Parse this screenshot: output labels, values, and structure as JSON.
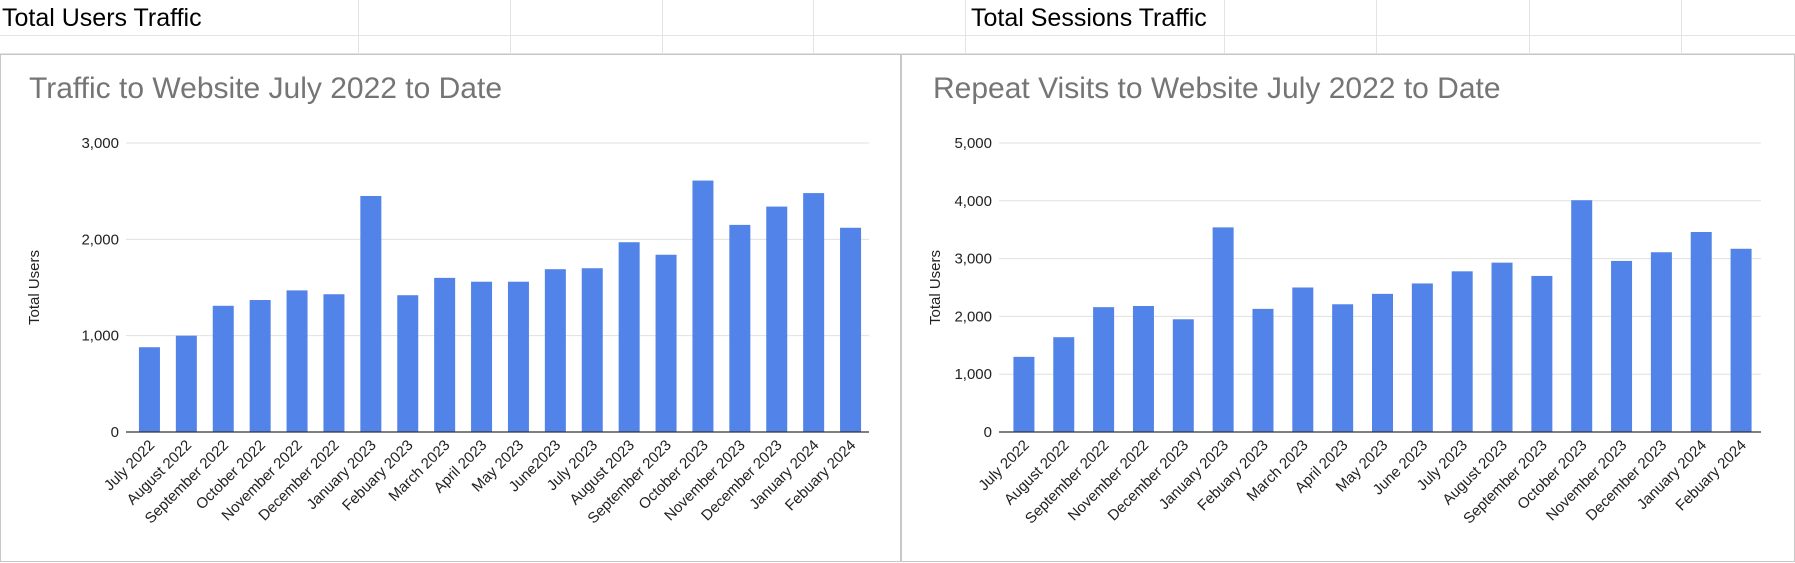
{
  "sheet": {
    "cell_left": "Total Users Traffic",
    "cell_right": "Total Sessions Traffic"
  },
  "chart_data": [
    {
      "type": "bar",
      "title": "Traffic to Website July 2022 to Date",
      "xlabel": "",
      "ylabel": "Total Users",
      "ylim": [
        0,
        3000
      ],
      "yticks": [
        0,
        1000,
        2000,
        3000
      ],
      "ytick_labels": [
        "0",
        "1,000",
        "2,000",
        "3,000"
      ],
      "grid": true,
      "color": "#5283e8",
      "categories": [
        "July 2022",
        "August 2022",
        "September 2022",
        "October 2022",
        "November 2022",
        "December 2022",
        "January 2023",
        "Febuary 2023",
        "March 2023",
        "April 2023",
        "May 2023",
        "June2023",
        "July 2023",
        "August 2023",
        "September 2023",
        "October 2023",
        "November 2023",
        "December 2023",
        "January 2024",
        "Febuary 2024"
      ],
      "values": [
        880,
        1000,
        1310,
        1370,
        1470,
        1430,
        2450,
        1420,
        1600,
        1560,
        1560,
        1690,
        1700,
        1970,
        1840,
        2610,
        2150,
        2340,
        2480,
        2120
      ]
    },
    {
      "type": "bar",
      "title": "Repeat Visits to Website July 2022 to Date",
      "xlabel": "",
      "ylabel": "Total Users",
      "ylim": [
        0,
        5000
      ],
      "yticks": [
        0,
        1000,
        2000,
        3000,
        4000,
        5000
      ],
      "ytick_labels": [
        "0",
        "1,000",
        "2,000",
        "3,000",
        "4,000",
        "5,000"
      ],
      "grid": true,
      "color": "#5283e8",
      "categories": [
        "July 2022",
        "August 2022",
        "September 2022",
        "November 2022",
        "December 2023",
        "January 2023",
        "Febuary 2023",
        "March 2023",
        "April 2023",
        "May 2023",
        "June 2023",
        "July 2023",
        "August 2023",
        "September 2023",
        "October 2023",
        "November 2023",
        "December 2023",
        "January 2024",
        "Febuary 2024"
      ],
      "values": [
        1300,
        1640,
        2160,
        2180,
        1950,
        3540,
        2130,
        2500,
        2210,
        2390,
        2570,
        2780,
        2930,
        2700,
        4010,
        2960,
        3110,
        3460,
        3170
      ]
    }
  ]
}
